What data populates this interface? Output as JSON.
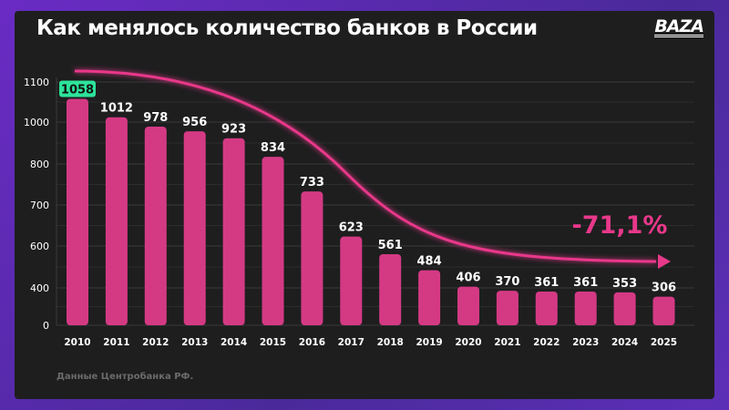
{
  "title": "Как менялось количество банков в России",
  "logo": "BAZA",
  "source": "Данные Центробанка РФ.",
  "colors": {
    "bar": "#d43a84",
    "highlight": "#2de39a",
    "trend": "#e8388a",
    "background": "#1e1e1f",
    "frame": "#5b2bb0"
  },
  "chart_data": {
    "type": "bar",
    "title": "Как менялось количество банков в России",
    "categories": [
      "2010",
      "2011",
      "2012",
      "2013",
      "2014",
      "2015",
      "2016",
      "2017",
      "2018",
      "2019",
      "2020",
      "2021",
      "2022",
      "2023",
      "2024",
      "2025"
    ],
    "values": [
      1058,
      1012,
      978,
      956,
      923,
      834,
      733,
      623,
      561,
      484,
      406,
      370,
      361,
      361,
      353,
      306
    ],
    "y_ticks": [
      0,
      400,
      600,
      700,
      800,
      1000,
      1100
    ],
    "ylim": [
      0,
      1100
    ],
    "y_scale": "broken (non-uniform ticks)",
    "grid": true,
    "highlighted_category": "2010",
    "annotation": "-71,1%",
    "trend_arrow": "decreasing curve from 2010 to 2025"
  }
}
